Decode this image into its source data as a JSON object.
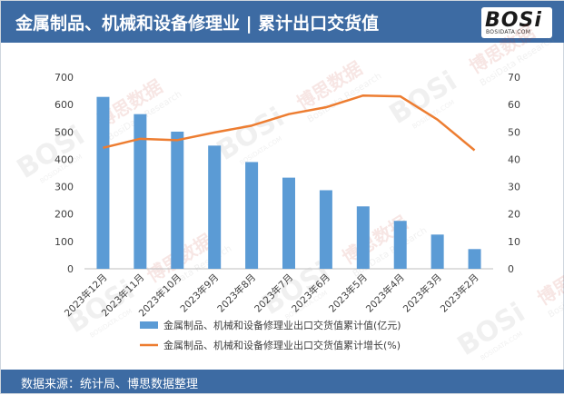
{
  "header": {
    "title": "金属制品、机械和设备修理业 | 累计出口交货值",
    "logo_text": "BOSi",
    "logo_sub": "BOSIDATA.COM"
  },
  "footer": {
    "source": "数据来源：统计局、博思数据整理"
  },
  "colors": {
    "bar": "#5b9bd5",
    "line": "#ed7d31",
    "header": "#3d6ba3"
  },
  "chart_data": {
    "type": "bar",
    "categories": [
      "2023年12月",
      "2023年11月",
      "2023年10月",
      "2023年9月",
      "2023年8月",
      "2023年7月",
      "2023年6月",
      "2023年5月",
      "2023年4月",
      "2023年3月",
      "2023年2月"
    ],
    "series": [
      {
        "name": "金属制品、机械和设备修理业出口交货值累计值(亿元)",
        "type": "bar",
        "axis": "left",
        "values": [
          628,
          565,
          501,
          450,
          390,
          333,
          287,
          228,
          175,
          125,
          72
        ]
      },
      {
        "name": "金属制品、机械和设备修理业出口交货值累计增长(%)",
        "type": "line",
        "axis": "right",
        "values": [
          44.2,
          47.5,
          47.0,
          49.8,
          52.3,
          56.5,
          59.0,
          63.3,
          63.0,
          54.5,
          43.3
        ]
      }
    ],
    "ylim_left": [
      0,
      700
    ],
    "yticks_left": [
      "0",
      "100",
      "200",
      "300",
      "400",
      "500",
      "600",
      "700"
    ],
    "ylim_right": [
      0,
      70
    ],
    "yticks_right": [
      "0",
      "10",
      "20",
      "30",
      "40",
      "50",
      "60",
      "70"
    ],
    "grid": false,
    "legend_position": "bottom"
  },
  "watermark": {
    "brand": "BOSi",
    "cn": "博思数据",
    "en": "BosiData Research",
    "url": "BOSIDATA.COM"
  }
}
